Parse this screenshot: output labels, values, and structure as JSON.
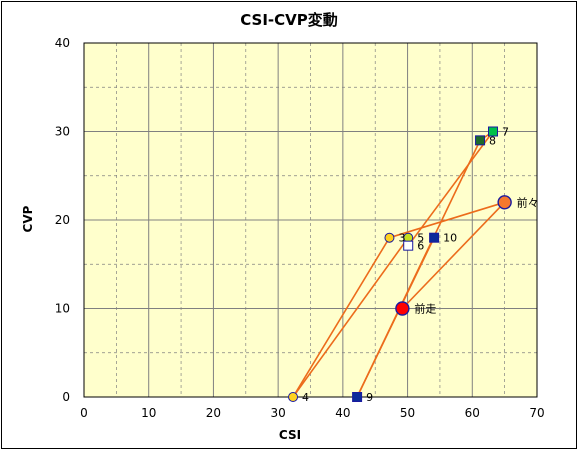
{
  "chart_data": {
    "type": "scatter",
    "title": "CSI-CVP変動",
    "xlabel": "CSI",
    "ylabel": "CVP",
    "xlim": [
      0,
      70
    ],
    "ylim": [
      0,
      40
    ],
    "x_ticks": [
      0,
      10,
      20,
      30,
      40,
      50,
      60,
      70
    ],
    "y_ticks": [
      0,
      10,
      20,
      30,
      40
    ],
    "grid": true,
    "colors": {
      "plot_background": "#ffffcc",
      "grid": "#808080",
      "line": "#ec6c1c",
      "circle_red": "#ff0000",
      "circle_orange": "#f5782e",
      "circle_yellow": "#ffd21f",
      "square_navy": "#0c2a9a",
      "square_green": "#00c048",
      "square_darkgreen": "#1e6a2a",
      "square_white": "#ffffff",
      "marker_edge": "#1a1aa0"
    },
    "points": [
      {
        "label": "前走",
        "x": 49.2,
        "y": 10,
        "marker": "circle",
        "fill": "#ff0000",
        "size": "large"
      },
      {
        "label": "前々",
        "x": 65,
        "y": 22,
        "marker": "circle",
        "fill": "#f5782e",
        "size": "large"
      },
      {
        "label": "3",
        "x": 47.2,
        "y": 18,
        "marker": "circle",
        "fill": "#ffd21f",
        "size": "small"
      },
      {
        "label": "4",
        "x": 32.3,
        "y": 0,
        "marker": "circle",
        "fill": "#ffd21f",
        "size": "small"
      },
      {
        "label": "5",
        "x": 50.1,
        "y": 18,
        "marker": "circle",
        "fill": "#c4e020",
        "size": "small"
      },
      {
        "label": "6",
        "x": 50.1,
        "y": 17.1,
        "marker": "square",
        "fill": "#ffffff",
        "size": "small"
      },
      {
        "label": "7",
        "x": 63.2,
        "y": 30,
        "marker": "square",
        "fill": "#00c048",
        "size": "small"
      },
      {
        "label": "8",
        "x": 61.2,
        "y": 29,
        "marker": "square",
        "fill": "#1e6a2a",
        "size": "small"
      },
      {
        "label": "9",
        "x": 42.2,
        "y": 0,
        "marker": "square",
        "fill": "#0c2a9a",
        "size": "small"
      },
      {
        "label": "10",
        "x": 54.1,
        "y": 18,
        "marker": "square",
        "fill": "#0c2a9a",
        "size": "small"
      }
    ],
    "connections": [
      [
        "前走",
        "前々"
      ],
      [
        "前々",
        "3"
      ],
      [
        "3",
        "4"
      ],
      [
        "4",
        "5"
      ],
      [
        "5",
        "6"
      ],
      [
        "6",
        "7"
      ],
      [
        "7",
        "8"
      ],
      [
        "8",
        "9"
      ],
      [
        "9",
        "10"
      ]
    ]
  }
}
